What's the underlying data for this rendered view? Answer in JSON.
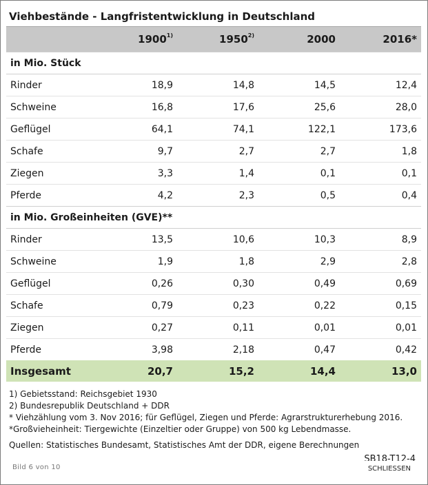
{
  "title": "Viehbestände - Langfristentwicklung in Deutschland",
  "columns": [
    {
      "year": "1900",
      "note": "1)"
    },
    {
      "year": "1950",
      "note": "2)"
    },
    {
      "year": "2000",
      "note": ""
    },
    {
      "year": "2016*",
      "note": ""
    }
  ],
  "sections": [
    {
      "heading": "in Mio. Stück",
      "rows": [
        {
          "label": "Rinder",
          "values": [
            "18,9",
            "14,8",
            "14,5",
            "12,4"
          ]
        },
        {
          "label": "Schweine",
          "values": [
            "16,8",
            "17,6",
            "25,6",
            "28,0"
          ]
        },
        {
          "label": "Geflügel",
          "values": [
            "64,1",
            "74,1",
            "122,1",
            "173,6"
          ]
        },
        {
          "label": "Schafe",
          "values": [
            "9,7",
            "2,7",
            "2,7",
            "1,8"
          ]
        },
        {
          "label": "Ziegen",
          "values": [
            "3,3",
            "1,4",
            "0,1",
            "0,1"
          ]
        },
        {
          "label": "Pferde",
          "values": [
            "4,2",
            "2,3",
            "0,5",
            "0,4"
          ]
        }
      ]
    },
    {
      "heading": "in Mio. Großeinheiten (GVE)**",
      "rows": [
        {
          "label": "Rinder",
          "values": [
            "13,5",
            "10,6",
            "10,3",
            "8,9"
          ]
        },
        {
          "label": "Schweine",
          "values": [
            "1,9",
            "1,8",
            "2,9",
            "2,8"
          ]
        },
        {
          "label": "Geflügel",
          "values": [
            "0,26",
            "0,30",
            "0,49",
            "0,69"
          ]
        },
        {
          "label": "Schafe",
          "values": [
            "0,79",
            "0,23",
            "0,22",
            "0,15"
          ]
        },
        {
          "label": "Ziegen",
          "values": [
            "0,27",
            "0,11",
            "0,01",
            "0,01"
          ]
        },
        {
          "label": "Pferde",
          "values": [
            "3,98",
            "2,18",
            "0,47",
            "0,42"
          ]
        }
      ]
    }
  ],
  "total": {
    "label": "Insgesamt",
    "values": [
      "20,7",
      "15,2",
      "14,4",
      "13,0"
    ]
  },
  "footnotes": [
    "1) Gebietsstand: Reichsgebiet 1930",
    "2) Bundesrepublik Deutschland + DDR",
    "* Viehzählung vom 3. Nov 2016; für Geflügel, Ziegen und Pferde: Agrarstrukturerhebung 2016.",
    "*Großvieheinheit: Tiergewichte (Einzeltier oder Gruppe) von 500 kg Lebendmasse."
  ],
  "sources": "Quellen: Statistisches Bundesamt, Statistisches Amt der DDR, eigene Berechnungen",
  "code": "SB18-T12-4",
  "footer": {
    "counter": "Bild 6 von 10",
    "close_label": "SCHLIESSEN"
  },
  "colors": {
    "header_bg": "#c8c8c8",
    "total_bg": "#cfe3b6"
  }
}
